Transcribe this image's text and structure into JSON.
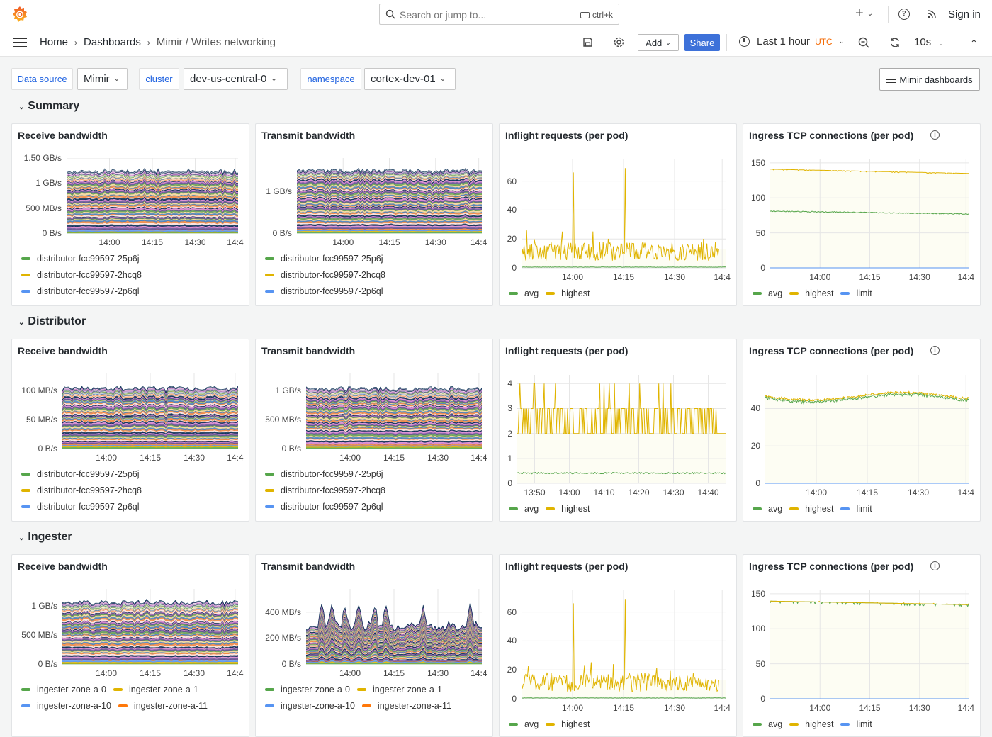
{
  "topbar": {
    "search_placeholder": "Search or jump to...",
    "search_shortcut": "ctrl+k",
    "new_label": "+",
    "sign_in": "Sign in"
  },
  "breadcrumb": [
    "Home",
    "Dashboards",
    "Mimir / Writes networking"
  ],
  "toolbar": {
    "add_label": "Add",
    "share_label": "Share",
    "time_range": "Last 1 hour",
    "timezone": "UTC",
    "refresh_interval": "10s"
  },
  "variables": [
    {
      "label": "Data source",
      "value": "Mimir"
    },
    {
      "label": "cluster",
      "value": "dev-us-central-0"
    },
    {
      "label": "namespace",
      "value": "cortex-dev-01"
    }
  ],
  "dashboards_link": "Mimir dashboards",
  "colors": {
    "accent": "#3d71d9",
    "timezone": "#f46800",
    "green": "#56a64b",
    "yellow": "#e0b400",
    "blue": "#5794f2",
    "orange": "#ff780a"
  },
  "sections": [
    {
      "title": "Summary",
      "panels": [
        {
          "title": "Receive bandwidth",
          "kind": "stacked",
          "y_max": 1.5,
          "y_ticks": [
            {
              "label": "0 B/s",
              "value": 0
            },
            {
              "label": "500 MB/s",
              "value": 0.5
            },
            {
              "label": "1 GB/s",
              "value": 1
            },
            {
              "label": "1.50 GB/s",
              "value": 1.5
            }
          ],
          "x_range": [
            "13:45",
            "14:45"
          ],
          "x_ticks": [
            {
              "label": "14:00",
              "time": "14:00"
            },
            {
              "label": "14:15",
              "time": "14:15"
            },
            {
              "label": "14:30",
              "time": "14:30"
            },
            {
              "label": "14:4",
              "time": "14:44"
            }
          ],
          "legend_mode": "list",
          "legend": [
            {
              "label": "distributor-fcc99597-25p6j",
              "color": "#56a64b"
            },
            {
              "label": "distributor-fcc99597-2hcq8",
              "color": "#e0b400"
            },
            {
              "label": "distributor-fcc99597-2p6ql",
              "color": "#5794f2"
            }
          ]
        },
        {
          "title": "Transmit bandwidth",
          "kind": "stacked",
          "y_max": 1.8,
          "y_ticks": [
            {
              "label": "0 B/s",
              "value": 0
            },
            {
              "label": "1 GB/s",
              "value": 1
            }
          ],
          "x_range": [
            "13:45",
            "14:45"
          ],
          "x_ticks": [
            {
              "label": "14:00",
              "time": "14:00"
            },
            {
              "label": "14:15",
              "time": "14:15"
            },
            {
              "label": "14:30",
              "time": "14:30"
            },
            {
              "label": "14:4",
              "time": "14:44"
            }
          ],
          "legend_mode": "list",
          "legend": [
            {
              "label": "distributor-fcc99597-25p6j",
              "color": "#56a64b"
            },
            {
              "label": "distributor-fcc99597-2hcq8",
              "color": "#e0b400"
            },
            {
              "label": "distributor-fcc99597-2p6ql",
              "color": "#5794f2"
            }
          ]
        },
        {
          "title": "Inflight requests (per pod)",
          "kind": "inflight",
          "y_max": 75,
          "y_ticks": [
            {
              "label": "0",
              "value": 0
            },
            {
              "label": "20",
              "value": 20
            },
            {
              "label": "40",
              "value": 40
            },
            {
              "label": "60",
              "value": 60
            }
          ],
          "x_range": [
            "13:45",
            "14:45"
          ],
          "x_ticks": [
            {
              "label": "14:00",
              "time": "14:00"
            },
            {
              "label": "14:15",
              "time": "14:15"
            },
            {
              "label": "14:30",
              "time": "14:30"
            },
            {
              "label": "14:4",
              "time": "14:44"
            }
          ],
          "legend_mode": "inline",
          "legend": [
            {
              "label": "avg",
              "color": "#56a64b"
            },
            {
              "label": "highest",
              "color": "#e0b400"
            }
          ]
        },
        {
          "title": "Ingress TCP connections (per pod)",
          "info": true,
          "kind": "tcp",
          "y_max": 155,
          "y_ticks": [
            {
              "label": "0",
              "value": 0
            },
            {
              "label": "50",
              "value": 50
            },
            {
              "label": "100",
              "value": 100
            },
            {
              "label": "150",
              "value": 150
            }
          ],
          "x_range": [
            "13:45",
            "14:45"
          ],
          "x_ticks": [
            {
              "label": "14:00",
              "time": "14:00"
            },
            {
              "label": "14:15",
              "time": "14:15"
            },
            {
              "label": "14:30",
              "time": "14:30"
            },
            {
              "label": "14:4",
              "time": "14:44"
            }
          ],
          "legend_mode": "inline",
          "legend": [
            {
              "label": "avg",
              "color": "#56a64b"
            },
            {
              "label": "highest",
              "color": "#e0b400"
            },
            {
              "label": "limit",
              "color": "#5794f2"
            }
          ]
        }
      ]
    },
    {
      "title": "Distributor",
      "panels": [
        {
          "title": "Receive bandwidth",
          "kind": "stacked",
          "y_max": 130,
          "y_ticks": [
            {
              "label": "0 B/s",
              "value": 0
            },
            {
              "label": "50 MB/s",
              "value": 50
            },
            {
              "label": "100 MB/s",
              "value": 100
            }
          ],
          "x_range": [
            "13:45",
            "14:45"
          ],
          "x_ticks": [
            {
              "label": "14:00",
              "time": "14:00"
            },
            {
              "label": "14:15",
              "time": "14:15"
            },
            {
              "label": "14:30",
              "time": "14:30"
            },
            {
              "label": "14:4",
              "time": "14:44"
            }
          ],
          "legend_mode": "list",
          "legend": [
            {
              "label": "distributor-fcc99597-25p6j",
              "color": "#56a64b"
            },
            {
              "label": "distributor-fcc99597-2hcq8",
              "color": "#e0b400"
            },
            {
              "label": "distributor-fcc99597-2p6ql",
              "color": "#5794f2"
            }
          ]
        },
        {
          "title": "Transmit bandwidth",
          "kind": "stacked",
          "y_max": 1.3,
          "y_ticks": [
            {
              "label": "0 B/s",
              "value": 0
            },
            {
              "label": "500 MB/s",
              "value": 0.5
            },
            {
              "label": "1 GB/s",
              "value": 1
            }
          ],
          "x_range": [
            "13:45",
            "14:45"
          ],
          "x_ticks": [
            {
              "label": "14:00",
              "time": "14:00"
            },
            {
              "label": "14:15",
              "time": "14:15"
            },
            {
              "label": "14:30",
              "time": "14:30"
            },
            {
              "label": "14:4",
              "time": "14:44"
            }
          ],
          "legend_mode": "list",
          "legend": [
            {
              "label": "distributor-fcc99597-25p6j",
              "color": "#56a64b"
            },
            {
              "label": "distributor-fcc99597-2hcq8",
              "color": "#e0b400"
            },
            {
              "label": "distributor-fcc99597-2p6ql",
              "color": "#5794f2"
            }
          ]
        },
        {
          "title": "Inflight requests (per pod)",
          "kind": "inflight-step",
          "y_max": 4.35,
          "y_ticks": [
            {
              "label": "0",
              "value": 0
            },
            {
              "label": "1",
              "value": 1
            },
            {
              "label": "2",
              "value": 2
            },
            {
              "label": "3",
              "value": 3
            },
            {
              "label": "4",
              "value": 4
            }
          ],
          "x_range": [
            "13:45",
            "14:45"
          ],
          "x_ticks": [
            {
              "label": "13:50",
              "time": "13:50"
            },
            {
              "label": "14:00",
              "time": "14:00"
            },
            {
              "label": "14:10",
              "time": "14:10"
            },
            {
              "label": "14:20",
              "time": "14:20"
            },
            {
              "label": "14:30",
              "time": "14:30"
            },
            {
              "label": "14:40",
              "time": "14:40"
            }
          ],
          "legend_mode": "inline",
          "legend": [
            {
              "label": "avg",
              "color": "#56a64b"
            },
            {
              "label": "highest",
              "color": "#e0b400"
            }
          ]
        },
        {
          "title": "Ingress TCP connections (per pod)",
          "info": true,
          "kind": "tcp-dist",
          "y_max": 58,
          "y_ticks": [
            {
              "label": "0",
              "value": 0
            },
            {
              "label": "20",
              "value": 20
            },
            {
              "label": "40",
              "value": 40
            }
          ],
          "x_range": [
            "13:45",
            "14:45"
          ],
          "x_ticks": [
            {
              "label": "14:00",
              "time": "14:00"
            },
            {
              "label": "14:15",
              "time": "14:15"
            },
            {
              "label": "14:30",
              "time": "14:30"
            },
            {
              "label": "14:4",
              "time": "14:44"
            }
          ],
          "legend_mode": "inline",
          "legend": [
            {
              "label": "avg",
              "color": "#56a64b"
            },
            {
              "label": "highest",
              "color": "#e0b400"
            },
            {
              "label": "limit",
              "color": "#5794f2"
            }
          ]
        }
      ]
    },
    {
      "title": "Ingester",
      "panels": [
        {
          "title": "Receive bandwidth",
          "kind": "stacked",
          "y_max": 1.3,
          "y_ticks": [
            {
              "label": "0 B/s",
              "value": 0
            },
            {
              "label": "500 MB/s",
              "value": 0.5
            },
            {
              "label": "1 GB/s",
              "value": 1
            }
          ],
          "x_range": [
            "13:45",
            "14:45"
          ],
          "x_ticks": [
            {
              "label": "14:00",
              "time": "14:00"
            },
            {
              "label": "14:15",
              "time": "14:15"
            },
            {
              "label": "14:30",
              "time": "14:30"
            },
            {
              "label": "14:4",
              "time": "14:44"
            }
          ],
          "legend_mode": "inline",
          "legend": [
            {
              "label": "ingester-zone-a-0",
              "color": "#56a64b"
            },
            {
              "label": "ingester-zone-a-1",
              "color": "#e0b400"
            },
            {
              "label": "ingester-zone-a-10",
              "color": "#5794f2"
            },
            {
              "label": "ingester-zone-a-11",
              "color": "#ff780a"
            }
          ]
        },
        {
          "title": "Transmit bandwidth",
          "kind": "stacked-spiky",
          "y_max": 580,
          "y_ticks": [
            {
              "label": "0 B/s",
              "value": 0
            },
            {
              "label": "200 MB/s",
              "value": 200
            },
            {
              "label": "400 MB/s",
              "value": 400
            }
          ],
          "x_range": [
            "13:45",
            "14:45"
          ],
          "x_ticks": [
            {
              "label": "14:00",
              "time": "14:00"
            },
            {
              "label": "14:15",
              "time": "14:15"
            },
            {
              "label": "14:30",
              "time": "14:30"
            },
            {
              "label": "14:4",
              "time": "14:44"
            }
          ],
          "legend_mode": "inline",
          "legend": [
            {
              "label": "ingester-zone-a-0",
              "color": "#56a64b"
            },
            {
              "label": "ingester-zone-a-1",
              "color": "#e0b400"
            },
            {
              "label": "ingester-zone-a-10",
              "color": "#5794f2"
            },
            {
              "label": "ingester-zone-a-11",
              "color": "#ff780a"
            }
          ]
        },
        {
          "title": "Inflight requests (per pod)",
          "kind": "inflight",
          "y_max": 75,
          "y_ticks": [
            {
              "label": "0",
              "value": 0
            },
            {
              "label": "20",
              "value": 20
            },
            {
              "label": "40",
              "value": 40
            },
            {
              "label": "60",
              "value": 60
            }
          ],
          "x_range": [
            "13:45",
            "14:45"
          ],
          "x_ticks": [
            {
              "label": "14:00",
              "time": "14:00"
            },
            {
              "label": "14:15",
              "time": "14:15"
            },
            {
              "label": "14:30",
              "time": "14:30"
            },
            {
              "label": "14:4",
              "time": "14:44"
            }
          ],
          "legend_mode": "inline",
          "legend": [
            {
              "label": "avg",
              "color": "#56a64b"
            },
            {
              "label": "highest",
              "color": "#e0b400"
            }
          ]
        },
        {
          "title": "Ingress TCP connections (per pod)",
          "info": true,
          "kind": "tcp-ing",
          "y_max": 155,
          "y_ticks": [
            {
              "label": "0",
              "value": 0
            },
            {
              "label": "50",
              "value": 50
            },
            {
              "label": "100",
              "value": 100
            },
            {
              "label": "150",
              "value": 150
            }
          ],
          "x_range": [
            "13:45",
            "14:45"
          ],
          "x_ticks": [
            {
              "label": "14:00",
              "time": "14:00"
            },
            {
              "label": "14:15",
              "time": "14:15"
            },
            {
              "label": "14:30",
              "time": "14:30"
            },
            {
              "label": "14:4",
              "time": "14:44"
            }
          ],
          "legend_mode": "inline",
          "legend": [
            {
              "label": "avg",
              "color": "#56a64b"
            },
            {
              "label": "highest",
              "color": "#e0b400"
            },
            {
              "label": "limit",
              "color": "#5794f2"
            }
          ]
        }
      ]
    }
  ]
}
